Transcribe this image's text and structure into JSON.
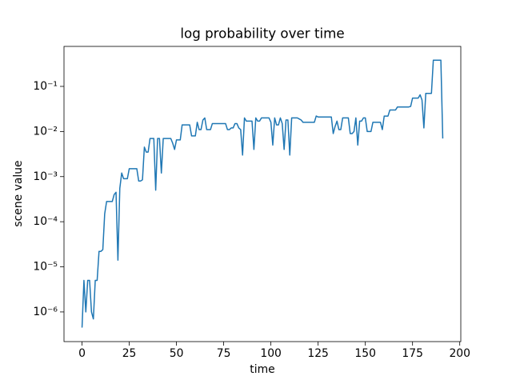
{
  "chart_data": {
    "type": "line",
    "title": "log probability over time",
    "x_label": "time",
    "y_label": "scene value",
    "yscale": "log",
    "grid": false,
    "xlim": [
      -9.55,
      200.55
    ],
    "xticks": [
      0,
      25,
      50,
      75,
      100,
      125,
      150,
      175,
      200
    ],
    "ylim": [
      2.2e-07,
      0.77
    ],
    "yticks": [
      {
        "value": 1e-06,
        "label": "10⁻⁶"
      },
      {
        "value": 1e-05,
        "label": "10⁻⁵"
      },
      {
        "value": 0.0001,
        "label": "10⁻⁴"
      },
      {
        "value": 0.001,
        "label": "10⁻³"
      },
      {
        "value": 0.01,
        "label": "10⁻²"
      },
      {
        "value": 0.1,
        "label": "10⁻¹"
      }
    ],
    "color": "#1f77b4",
    "values": [
      4.5e-07,
      5e-06,
      1e-06,
      5e-06,
      5e-06,
      1e-06,
      7e-07,
      5e-06,
      5e-06,
      2.2e-05,
      2.2e-05,
      2.4e-05,
      0.00015,
      0.00028,
      0.00028,
      0.00028,
      0.00028,
      0.0004,
      0.00045,
      1.4e-05,
      0.00055,
      0.0012,
      0.0009,
      0.0009,
      0.0009,
      0.0015,
      0.0015,
      0.0015,
      0.0015,
      0.0015,
      0.0008,
      0.0008,
      0.00085,
      0.0045,
      0.0035,
      0.0035,
      0.007,
      0.007,
      0.007,
      0.0005,
      0.007,
      0.007,
      0.0012,
      0.007,
      0.007,
      0.007,
      0.007,
      0.007,
      0.0055,
      0.004,
      0.0065,
      0.0065,
      0.0065,
      0.014,
      0.014,
      0.014,
      0.014,
      0.014,
      0.008,
      0.008,
      0.008,
      0.016,
      0.011,
      0.011,
      0.018,
      0.02,
      0.011,
      0.011,
      0.011,
      0.015,
      0.015,
      0.015,
      0.015,
      0.015,
      0.015,
      0.015,
      0.015,
      0.011,
      0.011,
      0.012,
      0.012,
      0.015,
      0.015,
      0.012,
      0.011,
      0.003,
      0.02,
      0.017,
      0.017,
      0.017,
      0.017,
      0.004,
      0.02,
      0.017,
      0.017,
      0.02,
      0.02,
      0.02,
      0.02,
      0.02,
      0.016,
      0.005,
      0.02,
      0.014,
      0.014,
      0.02,
      0.015,
      0.004,
      0.018,
      0.018,
      0.003,
      0.02,
      0.02,
      0.02,
      0.02,
      0.019,
      0.018,
      0.016,
      0.016,
      0.016,
      0.016,
      0.016,
      0.016,
      0.016,
      0.022,
      0.021,
      0.021,
      0.021,
      0.021,
      0.021,
      0.021,
      0.021,
      0.021,
      0.009,
      0.013,
      0.017,
      0.011,
      0.011,
      0.02,
      0.02,
      0.02,
      0.02,
      0.009,
      0.009,
      0.01,
      0.02,
      0.005,
      0.017,
      0.017,
      0.02,
      0.02,
      0.01,
      0.01,
      0.01,
      0.016,
      0.016,
      0.016,
      0.016,
      0.016,
      0.011,
      0.022,
      0.022,
      0.022,
      0.03,
      0.03,
      0.03,
      0.03,
      0.035,
      0.035,
      0.035,
      0.035,
      0.035,
      0.035,
      0.035,
      0.036,
      0.055,
      0.055,
      0.055,
      0.055,
      0.065,
      0.05,
      0.012,
      0.07,
      0.07,
      0.07,
      0.07,
      0.38,
      0.38,
      0.38,
      0.38,
      0.38,
      0.007
    ]
  }
}
